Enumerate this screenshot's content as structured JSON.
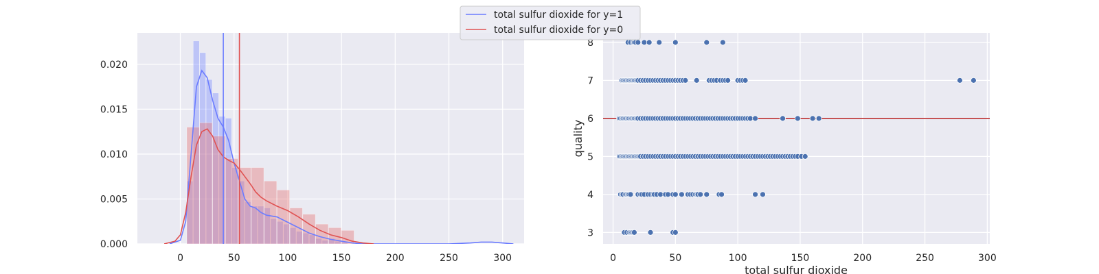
{
  "colors": {
    "background": "#eaeaf2",
    "grid": "#ffffff",
    "y1": "#6b7cff",
    "y0": "#e05252",
    "y1_fill": "#7b8cff",
    "y0_fill": "#e57373",
    "scatter": "#4c72b0",
    "hline": "#c03d3e"
  },
  "legend": {
    "placement": "top-center",
    "entries": [
      "total sulfur dioxide for y=1",
      "total sulfur dioxide for y=0"
    ]
  },
  "chart_data": [
    {
      "type": "histogram",
      "xlim": [
        -40,
        320
      ],
      "ylim": [
        0,
        0.0235
      ],
      "xticks": [
        0,
        50,
        100,
        150,
        200,
        250,
        300
      ],
      "yticks": [
        0.0,
        0.005,
        0.01,
        0.015,
        0.02
      ],
      "ytick_labels": [
        "0.000",
        "0.005",
        "0.010",
        "0.015",
        "0.020"
      ],
      "grid": true,
      "series": [
        {
          "name": "total sulfur dioxide for y=1",
          "bin_width": 6.0,
          "bin_starts": [
            6,
            12,
            18,
            24,
            30,
            36,
            42,
            48,
            54,
            60,
            66,
            72,
            78,
            84,
            90,
            96,
            102,
            108,
            114,
            120,
            126,
            132,
            138,
            144,
            150
          ],
          "density": [
            0.007,
            0.0226,
            0.0213,
            0.0183,
            0.0168,
            0.0142,
            0.014,
            0.0085,
            0.007,
            0.0047,
            0.0042,
            0.0042,
            0.004,
            0.0028,
            0.0025,
            0.0022,
            0.0018,
            0.0014,
            0.0012,
            0.001,
            0.0006,
            0.0004,
            0.0006,
            0.0003,
            0.0002
          ],
          "kde_x": [
            -10,
            0,
            5,
            10,
            15,
            20,
            25,
            30,
            35,
            40,
            45,
            50,
            55,
            60,
            65,
            70,
            75,
            80,
            90,
            100,
            110,
            120,
            130,
            140,
            150,
            160,
            170,
            180,
            200,
            250,
            270,
            280,
            290,
            300,
            310
          ],
          "kde_y": [
            0.0,
            0.0004,
            0.0025,
            0.01,
            0.0175,
            0.0193,
            0.0185,
            0.016,
            0.014,
            0.013,
            0.0115,
            0.009,
            0.007,
            0.005,
            0.0042,
            0.004,
            0.0035,
            0.0032,
            0.003,
            0.0024,
            0.0018,
            0.0012,
            0.0008,
            0.0005,
            0.0003,
            0.0001,
            0.0,
            0.0,
            0.0,
            0.0,
            0.0001,
            0.0002,
            0.0002,
            0.0001,
            0.0
          ],
          "mean": 40
        },
        {
          "name": "total sulfur dioxide for y=0",
          "bin_width": 12.0,
          "bin_starts": [
            6,
            18,
            30,
            42,
            54,
            66,
            78,
            90,
            102,
            114,
            126,
            138,
            150
          ],
          "density": [
            0.013,
            0.0135,
            0.012,
            0.0095,
            0.0085,
            0.0085,
            0.007,
            0.006,
            0.004,
            0.0033,
            0.0022,
            0.0018,
            0.0015
          ],
          "kde_x": [
            -15,
            -5,
            0,
            5,
            10,
            15,
            20,
            25,
            30,
            35,
            40,
            45,
            50,
            55,
            60,
            65,
            70,
            75,
            80,
            90,
            100,
            110,
            120,
            130,
            140,
            150,
            160,
            170,
            180
          ],
          "kde_y": [
            0.0,
            0.0003,
            0.001,
            0.0035,
            0.0075,
            0.011,
            0.0125,
            0.0128,
            0.012,
            0.0105,
            0.0097,
            0.0093,
            0.009,
            0.0083,
            0.0075,
            0.0067,
            0.0058,
            0.0052,
            0.0048,
            0.0042,
            0.0037,
            0.003,
            0.0022,
            0.0015,
            0.001,
            0.0007,
            0.0003,
            0.0001,
            0.0
          ],
          "mean": 55
        }
      ]
    },
    {
      "type": "scatter",
      "xlabel": "total sulfur dioxide",
      "ylabel": "quality",
      "xlim": [
        -8,
        302
      ],
      "ylim": [
        2.7,
        8.25
      ],
      "xticks": [
        0,
        50,
        100,
        150,
        200,
        250,
        300
      ],
      "yticks": [
        3,
        4,
        5,
        6,
        7,
        8
      ],
      "grid": true,
      "hline": 6,
      "points": [
        {
          "quality": 3,
          "x": [
            9,
            11,
            13,
            14,
            15,
            16,
            17,
            30,
            48,
            50
          ]
        },
        {
          "quality": 4,
          "x": [
            6,
            7,
            8,
            10,
            11,
            12,
            13,
            14,
            20,
            22,
            23,
            25,
            28,
            30,
            32,
            33,
            35,
            38,
            42,
            44,
            48,
            50,
            55,
            60,
            62,
            64,
            66,
            67,
            68,
            70,
            75,
            85,
            87,
            114,
            120
          ]
        },
        {
          "quality": 5,
          "x": [
            5,
            6,
            7,
            8,
            9,
            10,
            11,
            12,
            13,
            14,
            15,
            16,
            17,
            18,
            19,
            20,
            21,
            22,
            24,
            26,
            28,
            30,
            32,
            34,
            36,
            38,
            40,
            42,
            44,
            46,
            48,
            50,
            52,
            54,
            56,
            58,
            60,
            62,
            64,
            66,
            68,
            70,
            72,
            74,
            76,
            78,
            80,
            82,
            84,
            86,
            88,
            90,
            92,
            94,
            96,
            98,
            100,
            102,
            104,
            106,
            108,
            110,
            112,
            114,
            116,
            118,
            120,
            122,
            124,
            126,
            128,
            130,
            132,
            134,
            136,
            138,
            140,
            142,
            144,
            146,
            148,
            151,
            154
          ]
        },
        {
          "quality": 6,
          "x": [
            5,
            6,
            7,
            8,
            9,
            10,
            11,
            12,
            13,
            14,
            15,
            16,
            17,
            18,
            19,
            20,
            22,
            24,
            26,
            28,
            30,
            32,
            34,
            36,
            38,
            40,
            42,
            44,
            46,
            48,
            50,
            52,
            54,
            56,
            58,
            60,
            62,
            64,
            66,
            68,
            70,
            72,
            74,
            76,
            78,
            80,
            82,
            84,
            86,
            88,
            90,
            92,
            94,
            96,
            98,
            100,
            102,
            104,
            106,
            108,
            110,
            114,
            136,
            148,
            160,
            165
          ]
        },
        {
          "quality": 7,
          "x": [
            7,
            8,
            9,
            10,
            11,
            12,
            13,
            14,
            15,
            16,
            17,
            18,
            19,
            20,
            22,
            24,
            26,
            28,
            30,
            32,
            34,
            36,
            38,
            40,
            42,
            44,
            46,
            48,
            50,
            52,
            54,
            56,
            58,
            67,
            77,
            79,
            81,
            83,
            86,
            88,
            90,
            92,
            100,
            102,
            104,
            106,
            278,
            289
          ]
        },
        {
          "quality": 8,
          "x": [
            12,
            14,
            16,
            17,
            18,
            20,
            25,
            29,
            37,
            50,
            75,
            88
          ]
        }
      ]
    }
  ]
}
